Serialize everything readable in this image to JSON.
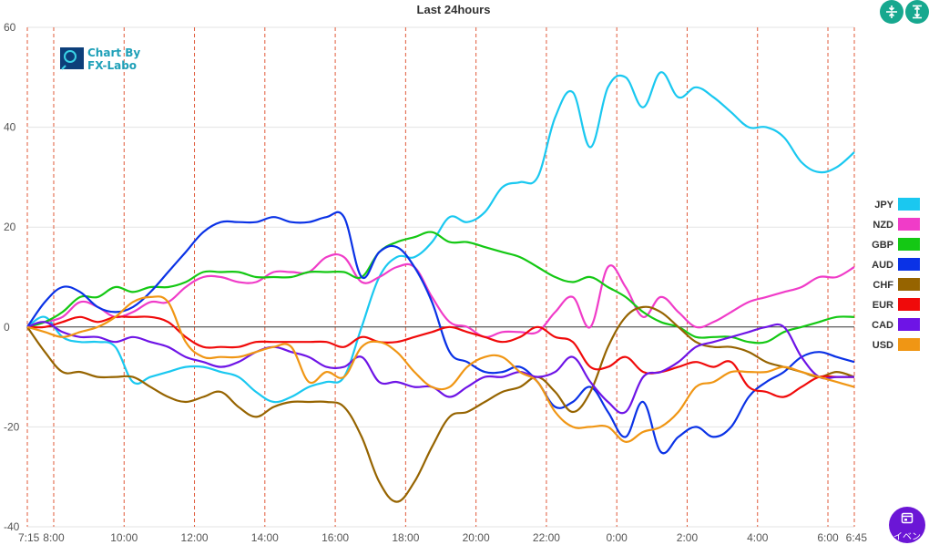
{
  "chart_data": {
    "type": "line",
    "title": "Last 24hours",
    "ylim": [
      -40,
      60
    ],
    "yticks": [
      -40,
      -20,
      0,
      20,
      40,
      60
    ],
    "x_hours_range": [
      0,
      23.5
    ],
    "xticks": [
      {
        "h": 0,
        "label": "7:15"
      },
      {
        "h": 0.75,
        "label": "8:00"
      },
      {
        "h": 2.75,
        "label": "10:00"
      },
      {
        "h": 4.75,
        "label": "12:00"
      },
      {
        "h": 6.75,
        "label": "14:00"
      },
      {
        "h": 8.75,
        "label": "16:00"
      },
      {
        "h": 10.75,
        "label": "18:00"
      },
      {
        "h": 12.75,
        "label": "20:00"
      },
      {
        "h": 14.75,
        "label": "22:00"
      },
      {
        "h": 16.75,
        "label": "0:00"
      },
      {
        "h": 18.75,
        "label": "2:00"
      },
      {
        "h": 20.75,
        "label": "4:00"
      },
      {
        "h": 22.75,
        "label": "6:00"
      },
      {
        "h": 23.5,
        "label": "6:45"
      }
    ],
    "vlines_hours": [
      0,
      0.75,
      2.75,
      4.75,
      6.75,
      8.75,
      10.75,
      12.75,
      14.75,
      16.75,
      18.75,
      20.75,
      22.75,
      23.5
    ],
    "x": [
      0,
      0.5,
      1,
      1.5,
      2,
      2.5,
      3,
      3.5,
      4,
      4.5,
      5,
      5.5,
      6,
      6.5,
      7,
      7.5,
      8,
      8.5,
      9,
      9.5,
      10,
      10.5,
      11,
      11.5,
      12,
      12.5,
      13,
      13.5,
      14,
      14.5,
      15,
      15.5,
      16,
      16.5,
      17,
      17.5,
      18,
      18.5,
      19,
      19.5,
      20,
      20.5,
      21,
      21.5,
      22,
      22.5,
      23,
      23.5
    ],
    "series": [
      {
        "name": "JPY",
        "color": "#1ac8f0",
        "values": [
          0,
          2,
          -2,
          -3,
          -3,
          -4,
          -11,
          -10,
          -9,
          -8,
          -8,
          -9,
          -10,
          -13,
          -15,
          -14,
          -12,
          -11,
          -10,
          0,
          10,
          14,
          14,
          17,
          22,
          21,
          23,
          28,
          29,
          30,
          42,
          47,
          36,
          48,
          50,
          44,
          51,
          46,
          48,
          46,
          43,
          40,
          40,
          38,
          33,
          31,
          32,
          35
        ]
      },
      {
        "name": "NZD",
        "color": "#f03cc8",
        "values": [
          0,
          1,
          2,
          5,
          4,
          2,
          3,
          5,
          5,
          8,
          10,
          10,
          9,
          9,
          11,
          11,
          11,
          14,
          14,
          9,
          10,
          12,
          12,
          6,
          1,
          0,
          -2,
          -1,
          -1,
          -1,
          3,
          6,
          0,
          12,
          8,
          2,
          6,
          3,
          0,
          1,
          3,
          5,
          6,
          7,
          8,
          10,
          10,
          12
        ]
      },
      {
        "name": "GBP",
        "color": "#14c814",
        "values": [
          0,
          1,
          3,
          6,
          6,
          8,
          7,
          8,
          8,
          9,
          11,
          11,
          11,
          10,
          10,
          10,
          11,
          11,
          11,
          10,
          15,
          17,
          18,
          19,
          17,
          17,
          16,
          15,
          14,
          12,
          10,
          9,
          10,
          8,
          6,
          3,
          1,
          0,
          -2,
          -2,
          -2,
          -3,
          -3,
          -1,
          0,
          1,
          2,
          2
        ]
      },
      {
        "name": "AUD",
        "color": "#0a32e6",
        "values": [
          0,
          5,
          8,
          7,
          4,
          3,
          4,
          7,
          11,
          15,
          19,
          21,
          21,
          21,
          22,
          21,
          21,
          22,
          22,
          10,
          15,
          16,
          12,
          5,
          -5,
          -7,
          -9,
          -9,
          -8,
          -11,
          -16,
          -15,
          -12,
          -17,
          -22,
          -15,
          -25,
          -22,
          -20,
          -22,
          -20,
          -14,
          -11,
          -9,
          -6,
          -5,
          -6,
          -7
        ]
      },
      {
        "name": "CHF",
        "color": "#966400",
        "values": [
          0,
          -5,
          -9,
          -9,
          -10,
          -10,
          -10,
          -12,
          -14,
          -15,
          -14,
          -13,
          -16,
          -18,
          -16,
          -15,
          -15,
          -15,
          -16,
          -22,
          -31,
          -35,
          -31,
          -24,
          -18,
          -17,
          -15,
          -13,
          -12,
          -10,
          -13,
          -17,
          -13,
          -4,
          2,
          4,
          3,
          0,
          -3,
          -4,
          -4,
          -5,
          -7,
          -8,
          -9,
          -10,
          -9,
          -10
        ]
      },
      {
        "name": "EUR",
        "color": "#f00a0a",
        "values": [
          0,
          0,
          1,
          2,
          1,
          2,
          2,
          2,
          1,
          -2,
          -4,
          -4,
          -4,
          -3,
          -3,
          -3,
          -3,
          -3,
          -4,
          -2,
          -3,
          -3,
          -2,
          -1,
          0,
          -1,
          -2,
          -3,
          -2,
          0,
          -2,
          -3,
          -8,
          -8,
          -6,
          -9,
          -9,
          -8,
          -7,
          -8,
          -7,
          -12,
          -13,
          -14,
          -12,
          -10,
          -10,
          -10
        ]
      },
      {
        "name": "CAD",
        "color": "#6e14e6",
        "values": [
          0,
          1,
          -1,
          -2,
          -2,
          -3,
          -2,
          -3,
          -4,
          -6,
          -7,
          -8,
          -7,
          -5,
          -4,
          -5,
          -6,
          -8,
          -8,
          -6,
          -11,
          -11,
          -12,
          -12,
          -14,
          -12,
          -10,
          -10,
          -9,
          -10,
          -9,
          -6,
          -11,
          -15,
          -17,
          -10,
          -9,
          -7,
          -4,
          -3,
          -2,
          -1,
          0,
          0,
          -6,
          -10,
          -10,
          -10
        ]
      },
      {
        "name": "USD",
        "color": "#f09614",
        "values": [
          0,
          -1,
          -2,
          -1,
          0,
          2,
          5,
          6,
          5,
          -3,
          -6,
          -6,
          -6,
          -5,
          -4,
          -4,
          -11,
          -9,
          -10,
          -4,
          -3,
          -5,
          -9,
          -12,
          -12,
          -8,
          -6,
          -6,
          -9,
          -11,
          -17,
          -20,
          -20,
          -20,
          -23,
          -21,
          -20,
          -17,
          -12,
          -11,
          -9,
          -9,
          -9,
          -8,
          -9,
          -10,
          -11,
          -12
        ]
      }
    ]
  },
  "logo": {
    "line1": "Chart By",
    "line2": "FX-Labo"
  },
  "buttons": {
    "event_label": "イベン"
  }
}
